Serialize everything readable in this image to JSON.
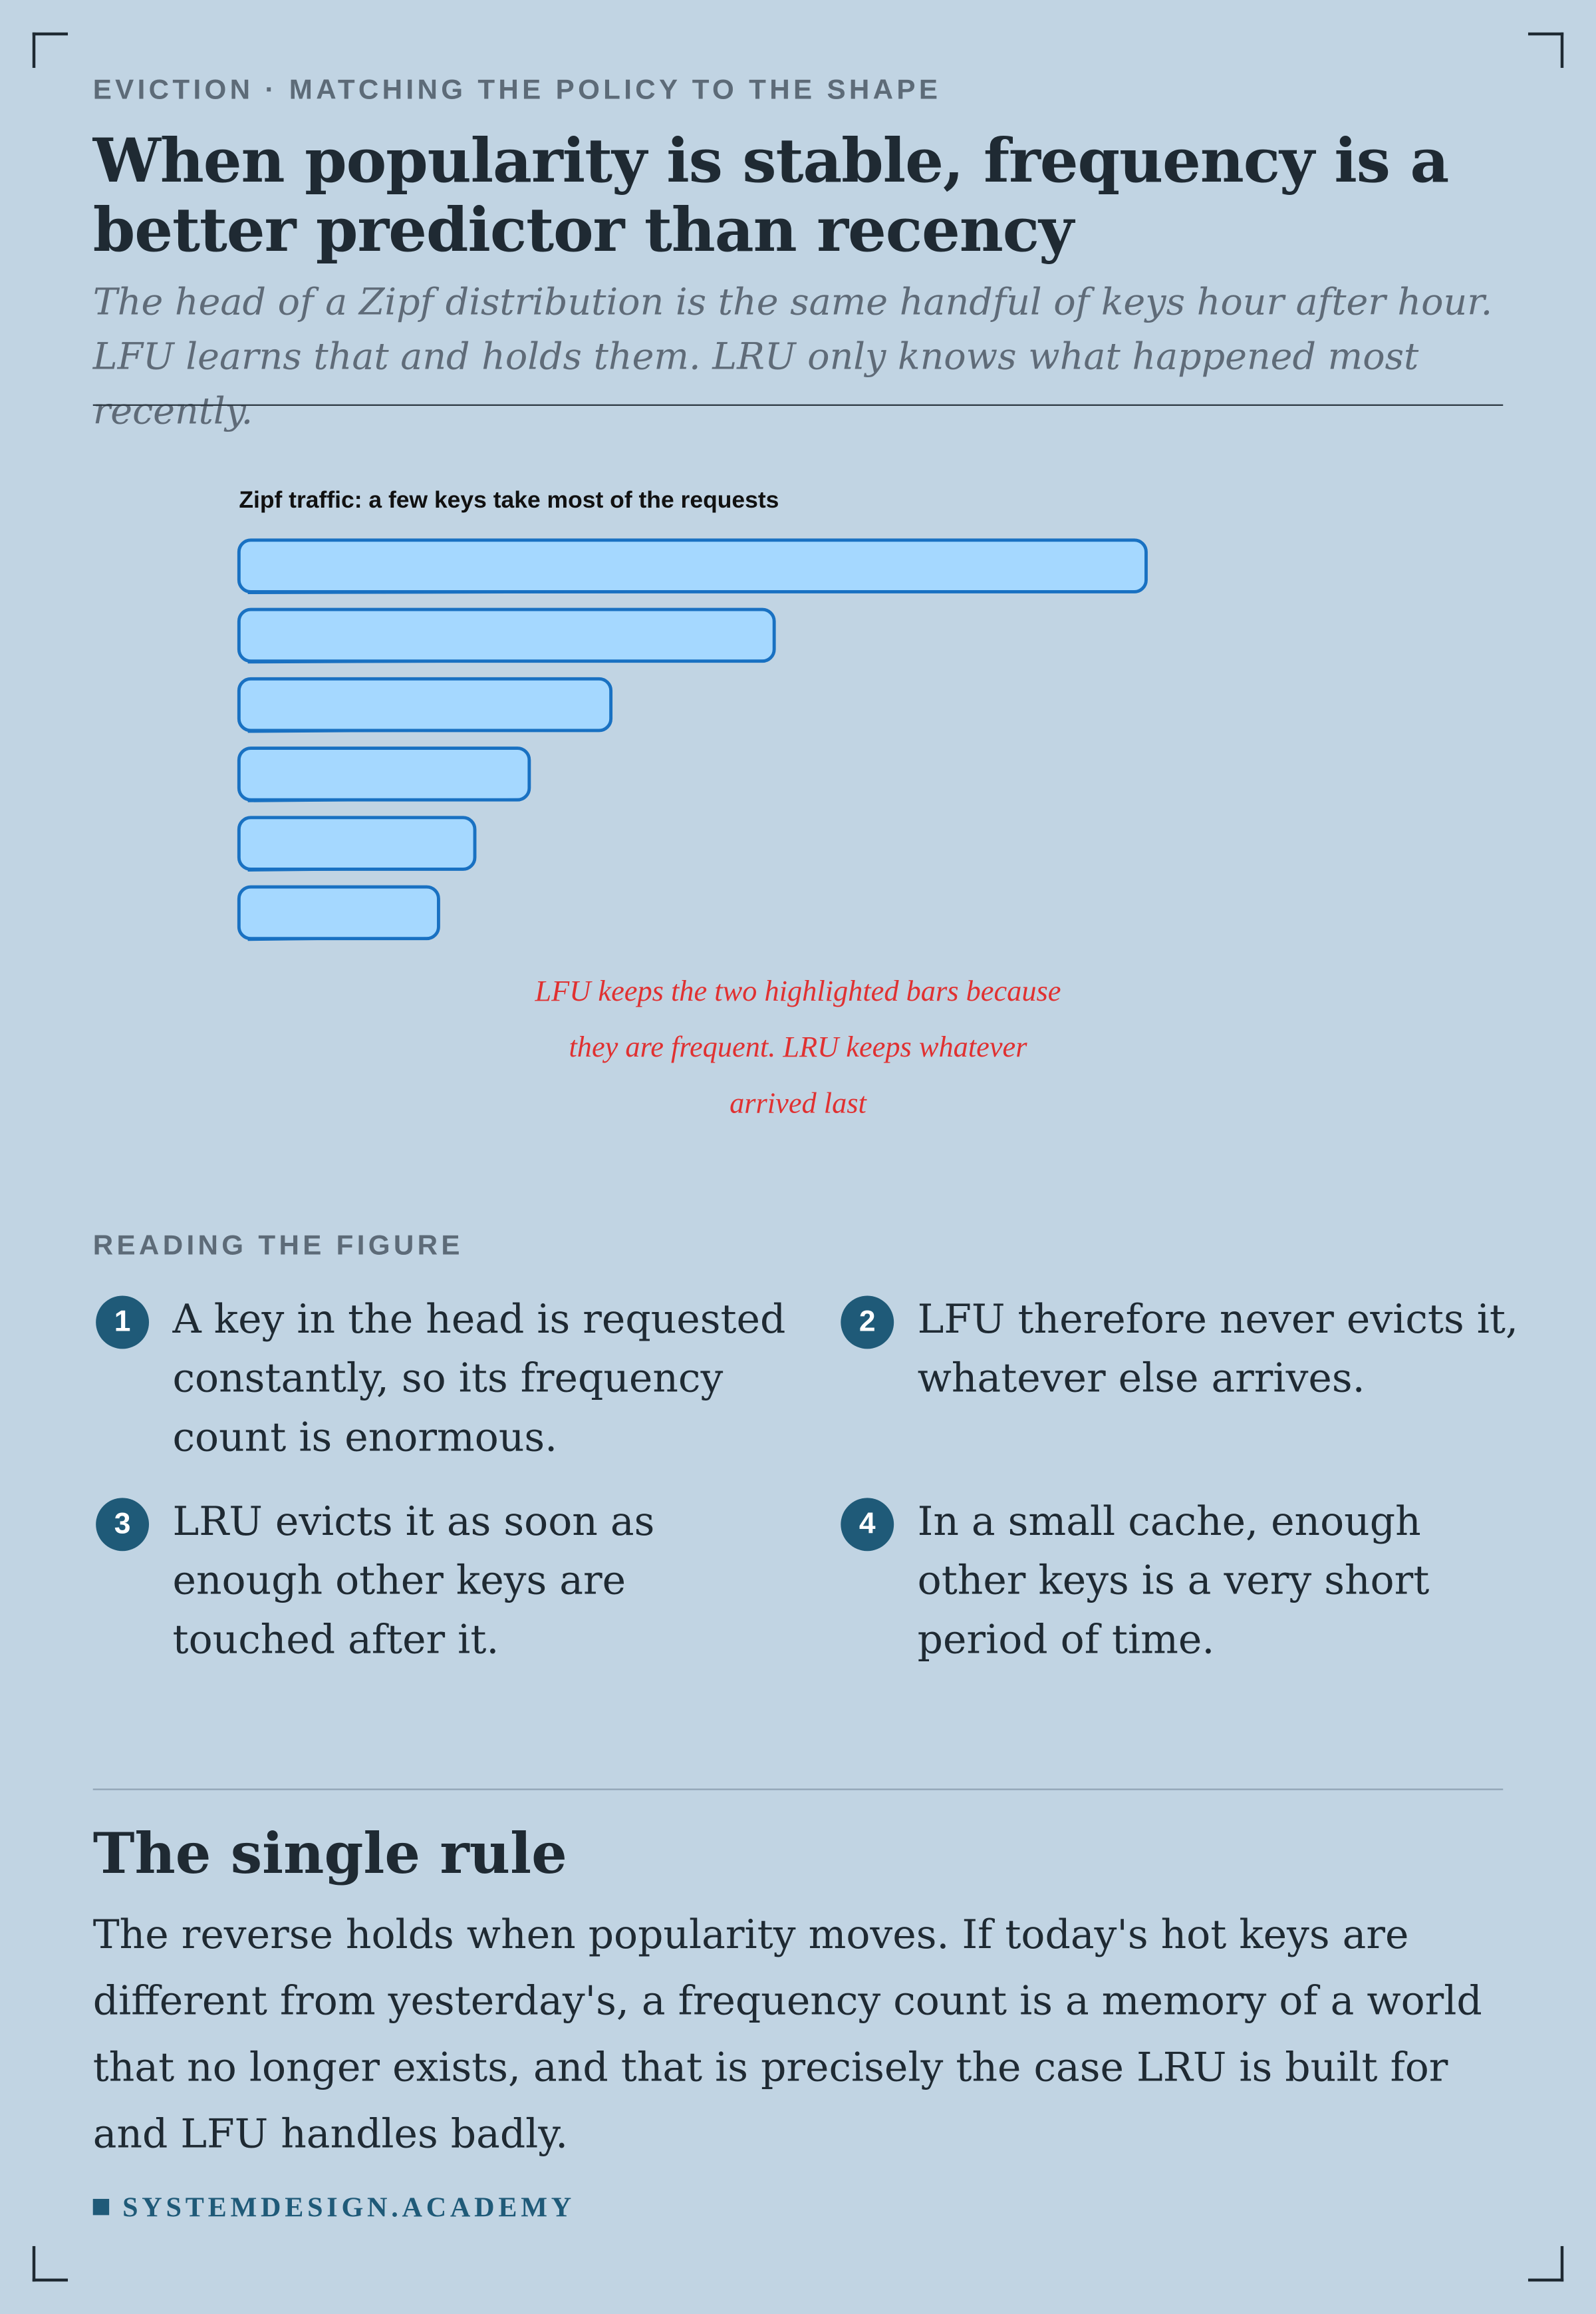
{
  "header": {
    "kicker": "EVICTION · MATCHING THE POLICY TO THE SHAPE",
    "title": "When popularity is stable, frequency is a better predictor than recency",
    "subtitle": "The head of a Zipf distribution is the same handful of keys hour after hour. LFU learns that and holds them. LRU only knows what happened most recently."
  },
  "chart_data": {
    "type": "bar",
    "orientation": "horizontal",
    "title": "Zipf traffic: a few keys take most of the requests",
    "categories": [
      null,
      null,
      null,
      null,
      null,
      null
    ],
    "values": [
      100,
      59,
      41,
      32,
      26,
      22
    ],
    "color": "#a5d8ff",
    "stroke": "#1971c2",
    "annotation": "LFU keeps the two highlighted bars because they are frequent. LRU keeps whatever arrived last"
  },
  "reading": {
    "heading": "READING THE FIGURE",
    "items": [
      {
        "number": 1,
        "text": "A key in the head is requested constantly, so its frequency count is enormous."
      },
      {
        "number": 2,
        "text": "LFU therefore never evicts it, whatever else arrives."
      },
      {
        "number": 3,
        "text": "LRU evicts it as soon as enough other keys are touched after it."
      },
      {
        "number": 4,
        "text": "In a small cache, enough other keys is a very short period of time."
      }
    ]
  },
  "rule": {
    "heading": "The single rule",
    "body": "The reverse holds when popularity moves. If today's hot keys are different from yesterday's, a frequency count is a memory of a world that no longer exists, and that is precisely the case LRU is built for and LFU handles badly."
  },
  "footer": {
    "brand": "SYSTEMDESIGN.ACADEMY"
  }
}
